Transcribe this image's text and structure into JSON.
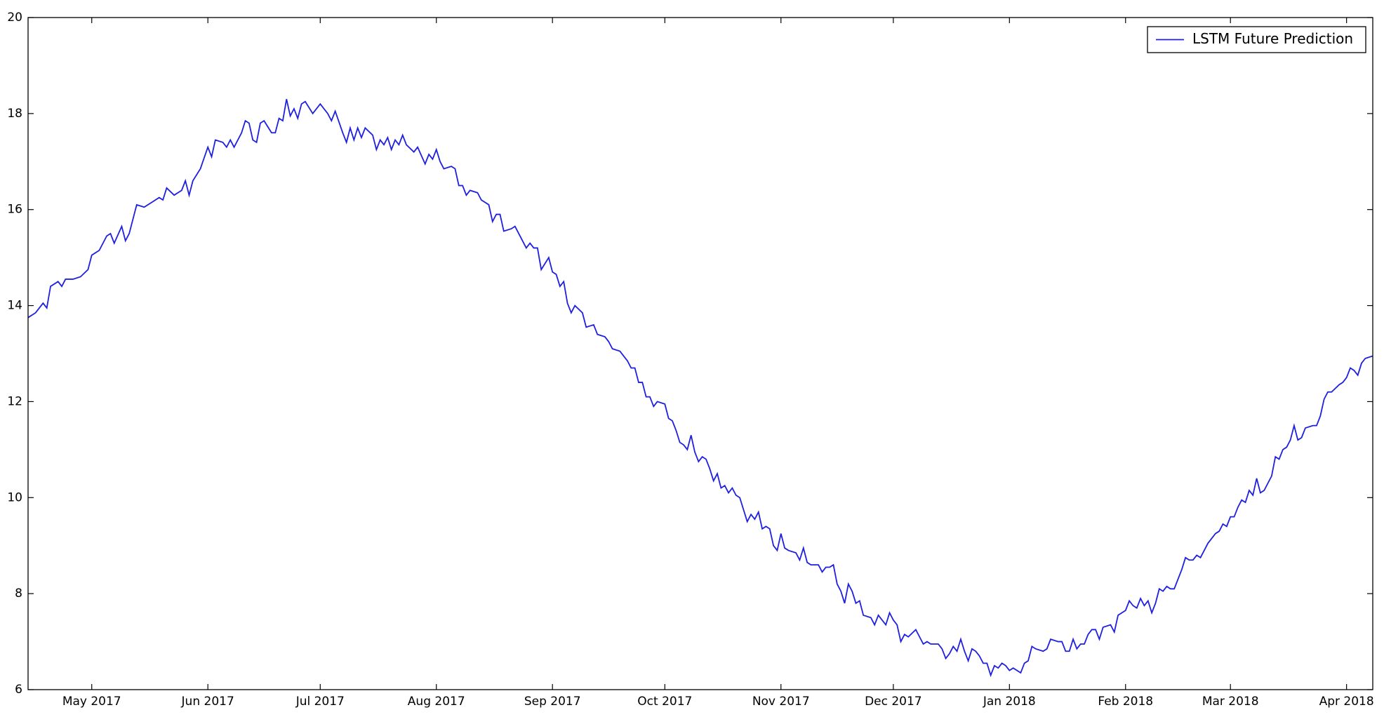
{
  "chart_data": {
    "type": "line",
    "x": [
      13,
      15,
      17,
      18,
      19,
      21,
      22,
      23,
      25,
      27,
      29,
      30,
      32,
      34,
      35,
      36,
      38,
      39,
      40,
      42,
      44,
      46,
      48,
      49,
      50,
      52,
      54,
      55,
      56,
      57,
      59,
      61,
      62,
      63,
      65,
      66,
      67,
      68,
      70,
      71,
      72,
      73,
      74,
      75,
      76,
      78,
      79,
      80,
      81,
      82,
      83,
      84,
      85,
      86,
      87,
      89,
      91,
      93,
      94,
      95,
      97,
      98,
      99,
      100,
      101,
      102,
      103,
      105,
      106,
      107,
      108,
      109,
      110,
      111,
      112,
      113,
      114,
      116,
      117,
      119,
      120,
      121,
      122,
      123,
      124,
      126,
      127,
      128,
      129,
      130,
      131,
      133,
      134,
      136,
      137,
      138,
      139,
      140,
      142,
      143,
      145,
      146,
      147,
      148,
      149,
      150,
      152,
      153,
      154,
      155,
      156,
      157,
      158,
      159,
      161,
      162,
      164,
      165,
      167,
      168,
      169,
      171,
      173,
      174,
      175,
      176,
      177,
      178,
      179,
      180,
      181,
      183,
      184,
      185,
      186,
      187,
      188,
      189,
      190,
      191,
      192,
      193,
      194,
      195,
      196,
      197,
      198,
      199,
      200,
      201,
      202,
      203,
      204,
      205,
      206,
      207,
      208,
      209,
      210,
      211,
      212,
      213,
      214,
      215,
      216,
      218,
      219,
      220,
      221,
      222,
      224,
      225,
      226,
      227,
      228,
      229,
      230,
      231,
      232,
      233,
      234,
      235,
      236,
      238,
      239,
      240,
      241,
      242,
      243,
      244,
      245,
      246,
      247,
      248,
      250,
      251,
      252,
      253,
      254,
      256,
      257,
      258,
      259,
      260,
      261,
      262,
      263,
      264,
      265,
      266,
      267,
      268,
      269,
      270,
      271,
      272,
      273,
      274,
      275,
      276,
      278,
      279,
      280,
      281,
      282,
      284,
      285,
      286,
      288,
      289,
      290,
      291,
      292,
      293,
      294,
      295,
      296,
      297,
      298,
      299,
      300,
      302,
      303,
      304,
      305,
      306,
      307,
      308,
      309,
      310,
      311,
      312,
      313,
      314,
      315,
      316,
      317,
      318,
      319,
      320,
      321,
      322,
      323,
      324,
      325,
      326,
      327,
      328,
      329,
      330,
      331,
      332,
      333,
      334,
      335,
      336,
      337,
      338,
      339,
      340,
      341,
      342,
      343,
      344,
      345,
      346,
      347,
      348,
      349,
      350,
      351,
      352,
      353,
      354,
      356,
      357,
      358,
      359,
      360,
      361,
      363,
      364,
      365,
      366,
      367,
      368,
      369,
      370,
      372
    ],
    "series": [
      {
        "name": "LSTM Future Prediction",
        "color": "#1f1fe0",
        "values": [
          13.75,
          13.85,
          14.05,
          13.95,
          14.4,
          14.5,
          14.4,
          14.55,
          14.55,
          14.6,
          14.75,
          15.05,
          15.15,
          15.45,
          15.5,
          15.3,
          15.65,
          15.35,
          15.5,
          16.1,
          16.05,
          16.15,
          16.25,
          16.2,
          16.45,
          16.3,
          16.4,
          16.6,
          16.3,
          16.6,
          16.85,
          17.3,
          17.1,
          17.45,
          17.4,
          17.3,
          17.45,
          17.3,
          17.6,
          17.85,
          17.8,
          17.45,
          17.4,
          17.8,
          17.85,
          17.6,
          17.6,
          17.9,
          17.85,
          18.3,
          17.95,
          18.1,
          17.9,
          18.2,
          18.25,
          18.0,
          18.2,
          18.0,
          17.85,
          18.05,
          17.6,
          17.4,
          17.7,
          17.45,
          17.7,
          17.5,
          17.7,
          17.55,
          17.25,
          17.45,
          17.35,
          17.5,
          17.25,
          17.45,
          17.35,
          17.55,
          17.35,
          17.2,
          17.3,
          16.95,
          17.15,
          17.05,
          17.25,
          17.0,
          16.85,
          16.9,
          16.85,
          16.5,
          16.5,
          16.3,
          16.4,
          16.35,
          16.2,
          16.1,
          15.75,
          15.9,
          15.9,
          15.55,
          15.6,
          15.65,
          15.35,
          15.2,
          15.3,
          15.2,
          15.2,
          14.75,
          15.0,
          14.7,
          14.65,
          14.4,
          14.5,
          14.05,
          13.85,
          14.0,
          13.85,
          13.55,
          13.6,
          13.4,
          13.35,
          13.25,
          13.1,
          13.05,
          12.85,
          12.7,
          12.7,
          12.4,
          12.4,
          12.1,
          12.1,
          11.9,
          12.0,
          11.95,
          11.65,
          11.6,
          11.4,
          11.15,
          11.1,
          11.0,
          11.3,
          10.95,
          10.75,
          10.85,
          10.8,
          10.6,
          10.35,
          10.5,
          10.2,
          10.25,
          10.1,
          10.2,
          10.05,
          10.0,
          9.75,
          9.5,
          9.65,
          9.55,
          9.7,
          9.35,
          9.4,
          9.35,
          9.0,
          8.9,
          9.25,
          8.95,
          8.9,
          8.85,
          8.7,
          8.95,
          8.65,
          8.6,
          8.6,
          8.45,
          8.55,
          8.55,
          8.6,
          8.2,
          8.05,
          7.8,
          8.2,
          8.05,
          7.8,
          7.85,
          7.55,
          7.5,
          7.35,
          7.55,
          7.45,
          7.35,
          7.6,
          7.45,
          7.35,
          7.0,
          7.15,
          7.1,
          7.25,
          7.1,
          6.95,
          7.0,
          6.95,
          6.95,
          6.85,
          6.65,
          6.75,
          6.9,
          6.8,
          7.05,
          6.8,
          6.6,
          6.85,
          6.8,
          6.7,
          6.55,
          6.55,
          6.3,
          6.5,
          6.45,
          6.55,
          6.5,
          6.4,
          6.45,
          6.35,
          6.55,
          6.6,
          6.9,
          6.85,
          6.8,
          6.85,
          7.05,
          7.0,
          7.0,
          6.8,
          6.8,
          7.05,
          6.85,
          6.95,
          6.95,
          7.15,
          7.25,
          7.25,
          7.05,
          7.3,
          7.35,
          7.2,
          7.55,
          7.6,
          7.65,
          7.85,
          7.75,
          7.7,
          7.9,
          7.75,
          7.85,
          7.6,
          7.8,
          8.1,
          8.05,
          8.15,
          8.1,
          8.1,
          8.3,
          8.5,
          8.75,
          8.7,
          8.7,
          8.8,
          8.75,
          8.9,
          9.05,
          9.15,
          9.25,
          9.3,
          9.45,
          9.4,
          9.6,
          9.6,
          9.8,
          9.95,
          9.9,
          10.15,
          10.05,
          10.4,
          10.1,
          10.15,
          10.3,
          10.45,
          10.85,
          10.8,
          11.0,
          11.05,
          11.2,
          11.5,
          11.2,
          11.25,
          11.45,
          11.5,
          11.5,
          11.7,
          12.05,
          12.2,
          12.2,
          12.35,
          12.4,
          12.5,
          12.7,
          12.65,
          12.55,
          12.8,
          12.9,
          12.95
        ]
      }
    ],
    "xlim": [
      13,
      372
    ],
    "xticks": [
      {
        "value": 30,
        "label": "May 2017"
      },
      {
        "value": 61,
        "label": "Jun 2017"
      },
      {
        "value": 91,
        "label": "Jul 2017"
      },
      {
        "value": 122,
        "label": "Aug 2017"
      },
      {
        "value": 153,
        "label": "Sep 2017"
      },
      {
        "value": 183,
        "label": "Oct 2017"
      },
      {
        "value": 214,
        "label": "Nov 2017"
      },
      {
        "value": 244,
        "label": "Dec 2017"
      },
      {
        "value": 275,
        "label": "Jan 2018"
      },
      {
        "value": 306,
        "label": "Feb 2018"
      },
      {
        "value": 334,
        "label": "Mar 2018"
      },
      {
        "value": 365,
        "label": "Apr 2018"
      }
    ],
    "ylim": [
      6,
      20
    ],
    "yticks": [
      6,
      8,
      10,
      12,
      14,
      16,
      18,
      20
    ],
    "legend": "upper right",
    "grid": false
  }
}
